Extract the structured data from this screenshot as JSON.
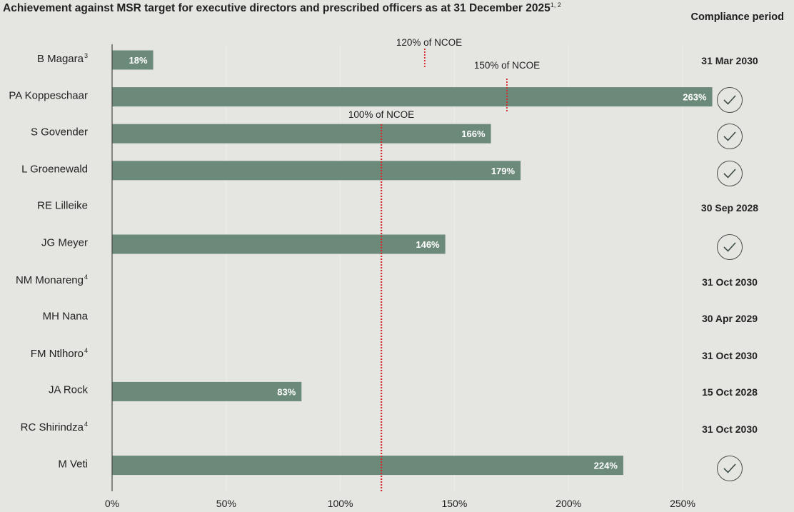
{
  "header": {
    "title": "Achievement against MSR target for executive directors and prescribed officers as at 31 December 2025",
    "title_footnotes": "1, 2",
    "compliance_period_header": "Compliance period"
  },
  "colors": {
    "bar": "#6c8a7a",
    "ref_line": "#d42a2a",
    "background": "#e5e5e2"
  },
  "chart_data": {
    "type": "bar",
    "orientation": "horizontal",
    "categories": [
      "B Magara",
      "PA Koppeschaar",
      "S Govender",
      "L Groenewald",
      "RE Lilleike",
      "JG Meyer",
      "NM Monareng",
      "MH Nana",
      "FM Ntlhoro",
      "JA Rock",
      "RC Shirindza",
      "M Veti"
    ],
    "footnotes": [
      "3",
      "",
      "",
      "",
      "",
      "",
      "4",
      "",
      "4",
      "",
      "4",
      ""
    ],
    "values": [
      18,
      263,
      166,
      179,
      null,
      146,
      null,
      null,
      null,
      83,
      null,
      224
    ],
    "value_labels": [
      "18%",
      "263%",
      "166%",
      "179%",
      "",
      "146%",
      "",
      "",
      "",
      "83%",
      "",
      "224%"
    ],
    "xlim": [
      0,
      265
    ],
    "xticks": [
      0,
      50,
      100,
      150,
      200,
      250
    ],
    "xtick_labels": [
      "0%",
      "50%",
      "100%",
      "150%",
      "200%",
      "250%"
    ],
    "xlabel": "",
    "ylabel": "",
    "grid": false,
    "reference_lines": [
      {
        "label": "100% of NCOE",
        "value": 118
      },
      {
        "label": "120% of NCOE",
        "value": 137
      },
      {
        "label": "150% of NCOE",
        "value": 173
      }
    ],
    "compliance_period": [
      "31 Mar 2030",
      "check",
      "check",
      "check",
      "30 Sep 2028",
      "check",
      "31 Oct 2030",
      "30 Apr 2029",
      "31 Oct 2030",
      "15 Oct 2028",
      "31 Oct 2030",
      "check"
    ]
  }
}
